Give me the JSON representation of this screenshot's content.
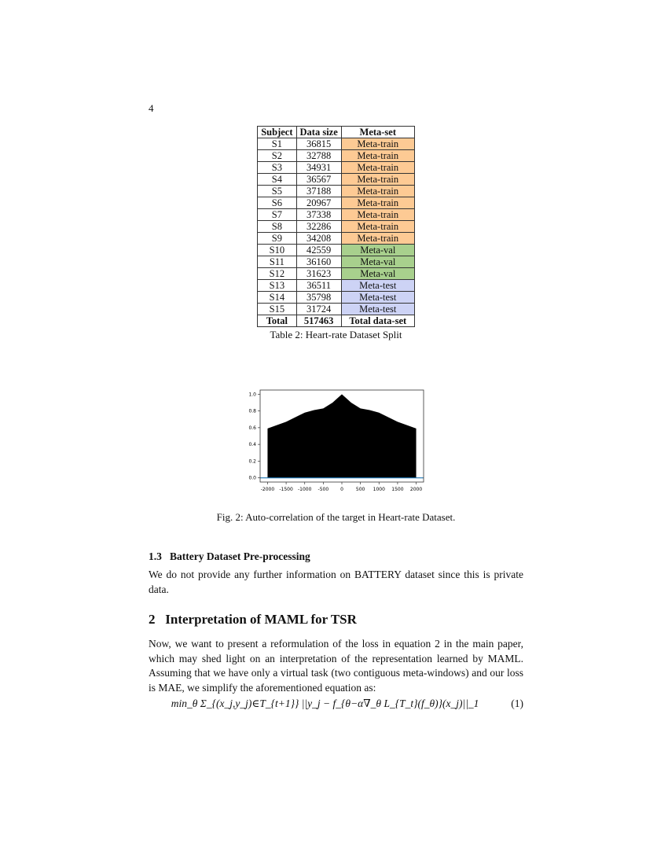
{
  "page_number": "4",
  "table": {
    "headers": [
      "Subject",
      "Data size",
      "Meta-set"
    ],
    "rows": [
      [
        "S1",
        "36815",
        "Meta-train"
      ],
      [
        "S2",
        "32788",
        "Meta-train"
      ],
      [
        "S3",
        "34931",
        "Meta-train"
      ],
      [
        "S4",
        "36567",
        "Meta-train"
      ],
      [
        "S5",
        "37188",
        "Meta-train"
      ],
      [
        "S6",
        "20967",
        "Meta-train"
      ],
      [
        "S7",
        "37338",
        "Meta-train"
      ],
      [
        "S8",
        "32286",
        "Meta-train"
      ],
      [
        "S9",
        "34208",
        "Meta-train"
      ],
      [
        "S10",
        "42559",
        "Meta-val"
      ],
      [
        "S11",
        "36160",
        "Meta-val"
      ],
      [
        "S12",
        "31623",
        "Meta-val"
      ],
      [
        "S13",
        "36511",
        "Meta-test"
      ],
      [
        "S14",
        "35798",
        "Meta-test"
      ],
      [
        "S15",
        "31724",
        "Meta-test"
      ]
    ],
    "total": [
      "Total",
      "517463",
      "Total data-set"
    ],
    "caption": "Table 2: Heart-rate Dataset Split",
    "colors": {
      "Meta-train": "#fdca94",
      "Meta-val": "#a8d08d",
      "Meta-test": "#cdd3f5"
    }
  },
  "chart_data": {
    "type": "area",
    "x": [
      -2000,
      -1500,
      -1000,
      -750,
      -500,
      -250,
      0,
      250,
      500,
      750,
      1000,
      1500,
      2000
    ],
    "y": [
      0.59,
      0.67,
      0.78,
      0.81,
      0.83,
      0.9,
      1.0,
      0.9,
      0.83,
      0.81,
      0.78,
      0.67,
      0.59
    ],
    "xlim": [
      -2200,
      2200
    ],
    "ylim": [
      -0.05,
      1.05
    ],
    "xticks": [
      "-2000",
      "-1500",
      "-1000",
      "-500",
      "0",
      "500",
      "1000",
      "1500",
      "2000"
    ],
    "yticks": [
      "0.0",
      "0.2",
      "0.4",
      "0.6",
      "0.8",
      "1.0"
    ],
    "fill_color": "#000000",
    "baseline_color": "#1f77b4",
    "grid": false
  },
  "figure_caption": "Fig. 2: Auto-correlation of the target in Heart-rate Dataset.",
  "section_1_3": {
    "number": "1.3",
    "title": "Battery Dataset Pre-processing",
    "text": "We do not provide any further information on BATTERY dataset since this is private data."
  },
  "section_2": {
    "number": "2",
    "title": "Interpretation of MAML for TSR",
    "text": "Now, we want to present a reformulation of the loss in equation 2 in the main paper, which may shed light on an interpretation of the representation learned by MAML. Assuming that we have only a virtual task (two contiguous meta-windows) and our loss is MAE, we simplify the aforementioned equation as:"
  },
  "equation": {
    "text": "min_θ Σ_{(x_j,y_j)∈T_{t+1}} ||y_j − f_{θ−α∇_θ L_{T_t}(f_θ)}(x_j)||_1",
    "number": "(1)"
  }
}
